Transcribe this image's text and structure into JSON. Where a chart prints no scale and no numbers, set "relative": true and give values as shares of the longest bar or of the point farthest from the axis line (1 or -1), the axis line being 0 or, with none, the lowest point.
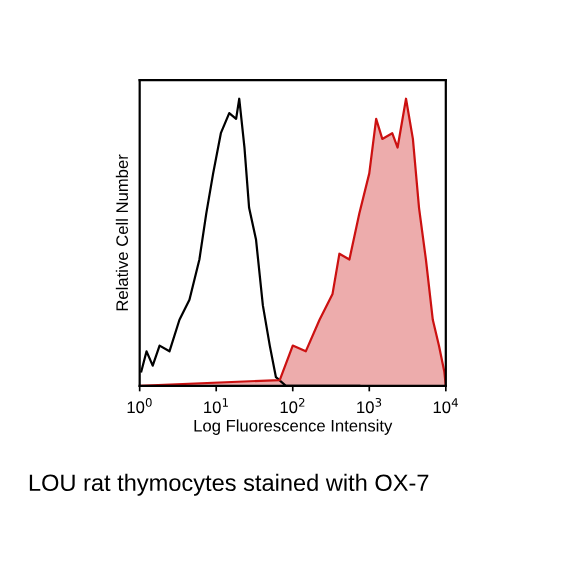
{
  "chart_data": {
    "type": "line",
    "relative": true,
    "log": "x",
    "xlabel": "Log Fluorescence Intensity",
    "ylabel": "Relative Cell Number",
    "xlim": [
      1,
      10000
    ],
    "xticks": [
      {
        "value": 1,
        "label": "10$^{0}$"
      },
      {
        "value": 10,
        "label": "10$^{1}$"
      },
      {
        "value": 100,
        "label": "10$^{2}$"
      },
      {
        "value": 1000,
        "label": "10$^{3}$"
      },
      {
        "value": 10000,
        "label": "10$^{4}$"
      }
    ],
    "tick_labels": "x",
    "grid": false,
    "legend": false,
    "series": [
      {
        "color": "#000000",
        "x": [
          1.05,
          1.23,
          1.48,
          1.82,
          2.45,
          3.31,
          4.47,
          6.03,
          7.41,
          9.12,
          11.5,
          14.8,
          18.2,
          20,
          23.4,
          26.9,
          33.1,
          40.7,
          50.1,
          60.3,
          81.3,
          182,
          741
        ],
        "values": [
          0.05,
          0.12,
          0.07,
          0.14,
          0.12,
          0.23,
          0.3,
          0.44,
          0.6,
          0.74,
          0.88,
          0.95,
          0.93,
          1.0,
          0.83,
          0.62,
          0.51,
          0.28,
          0.14,
          0.03,
          0,
          0,
          0
        ]
      },
      {
        "type": "area",
        "color": "#cc1111",
        "x": [
          1,
          67.6,
          100,
          148,
          224,
          331,
          407,
          550,
          741,
          1000,
          1230,
          1479,
          1995,
          2344,
          3020,
          3715,
          4467,
          5495,
          6761,
          8128,
          9550,
          10000
        ],
        "values": [
          0,
          0.02,
          0.14,
          0.12,
          0.23,
          0.32,
          0.46,
          0.44,
          0.6,
          0.74,
          0.93,
          0.86,
          0.88,
          0.83,
          1.0,
          0.86,
          0.62,
          0.44,
          0.23,
          0.14,
          0.05,
          0
        ]
      }
    ],
    "annotations": [
      "LOU rat thymocytes stained with OX-7"
    ]
  }
}
